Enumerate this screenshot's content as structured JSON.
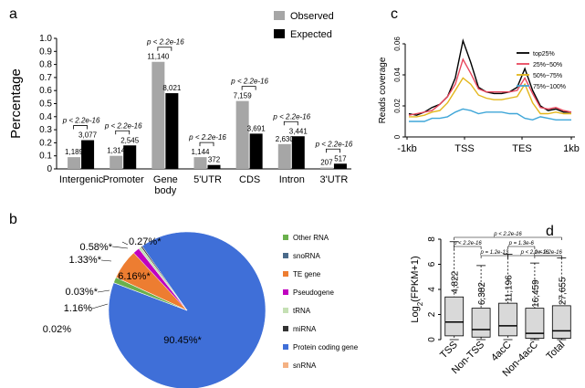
{
  "panels": {
    "a": "a",
    "b": "b",
    "c": "c",
    "d": "d"
  },
  "chart_data": [
    {
      "type": "bar",
      "panel": "a",
      "ylabel": "Percentage",
      "ylim": [
        0,
        1.0
      ],
      "yticks": [
        "0",
        "0.1",
        "0.2",
        "0.3",
        "0.4",
        "0.5",
        "0.6",
        "0.7",
        "0.8",
        "0.9",
        "1.0"
      ],
      "categories": [
        "Intergenic",
        "Promoter",
        "Gene body",
        "5'UTR",
        "CDS",
        "Intron",
        "3'UTR"
      ],
      "category_lines": [
        [
          "Intergenic"
        ],
        [
          "Promoter"
        ],
        [
          "Gene",
          "body"
        ],
        [
          "5'UTR"
        ],
        [
          "CDS"
        ],
        [
          "Intron"
        ],
        [
          "3'UTR"
        ]
      ],
      "series": [
        {
          "name": "Observed",
          "color": "#a6a6a6",
          "values": [
            0.09,
            0.1,
            0.82,
            0.09,
            0.52,
            0.19,
            0.01
          ],
          "labels": [
            "1,189",
            "1,314",
            "11,140",
            "1,144",
            "7,159",
            "2,630",
            "207"
          ]
        },
        {
          "name": "Expected",
          "color": "#000000",
          "values": [
            0.22,
            0.18,
            0.58,
            0.03,
            0.27,
            0.25,
            0.04
          ],
          "labels": [
            "3,077",
            "2,545",
            "8,021",
            "372",
            "3,691",
            "3,441",
            "517"
          ]
        }
      ],
      "pvalue": "p < 2.2e-16",
      "legend": [
        "Observed",
        "Expected"
      ]
    },
    {
      "type": "line",
      "panel": "c",
      "ylabel": "Reads coverage",
      "ylim": [
        0,
        0.06
      ],
      "yticks": [
        "0",
        "0.02",
        "0.04",
        "0.06"
      ],
      "xticks": [
        "-1kb",
        "TSS",
        "TES",
        "1kb"
      ],
      "series": [
        {
          "name": "top25%",
          "color": "#000000",
          "values": [
            0.015,
            0.014,
            0.016,
            0.019,
            0.021,
            0.026,
            0.038,
            0.062,
            0.048,
            0.032,
            0.029,
            0.028,
            0.028,
            0.029,
            0.032,
            0.044,
            0.03,
            0.02,
            0.017,
            0.018,
            0.016,
            0.016
          ]
        },
        {
          "name": "25%~50%",
          "color": "#e8475d",
          "values": [
            0.014,
            0.015,
            0.016,
            0.017,
            0.021,
            0.026,
            0.034,
            0.05,
            0.041,
            0.031,
            0.029,
            0.029,
            0.029,
            0.029,
            0.03,
            0.038,
            0.028,
            0.019,
            0.018,
            0.019,
            0.017,
            0.016
          ]
        },
        {
          "name": "50%~75%",
          "color": "#e3b61b",
          "values": [
            0.013,
            0.013,
            0.014,
            0.016,
            0.017,
            0.022,
            0.03,
            0.038,
            0.034,
            0.027,
            0.025,
            0.024,
            0.024,
            0.025,
            0.026,
            0.034,
            0.022,
            0.015,
            0.015,
            0.016,
            0.015,
            0.015
          ]
        },
        {
          "name": "75%~100%",
          "color": "#3fa6d8",
          "values": [
            0.01,
            0.01,
            0.01,
            0.012,
            0.012,
            0.013,
            0.016,
            0.018,
            0.017,
            0.015,
            0.016,
            0.016,
            0.016,
            0.015,
            0.015,
            0.012,
            0.011,
            0.013,
            0.012,
            0.011,
            0.011,
            0.011
          ]
        }
      ]
    },
    {
      "type": "pie",
      "panel": "b",
      "slices": [
        {
          "name": "Other RNA",
          "value": 1.16,
          "color": "#6ab04c"
        },
        {
          "name": "snoRNA",
          "value": 0.02,
          "color": "#4a6a8a"
        },
        {
          "name": "TE gene",
          "value": 6.16,
          "color": "#ed7d31"
        },
        {
          "name": "Pseudogene",
          "value": 1.33,
          "color": "#c000c0"
        },
        {
          "name": "tRNA",
          "value": 0.58,
          "color": "#c5e0b4"
        },
        {
          "name": "miRNA",
          "value": 0.27,
          "color": "#333333"
        },
        {
          "name": "Protein coding gene",
          "value": 90.45,
          "color": "#3f6fd8"
        },
        {
          "name": "snRNA",
          "value": 0.03,
          "color": "#f4b183"
        }
      ],
      "slice_labels": {
        "protein": "90.45%*",
        "te": "6.16%*",
        "l027": "0.27%*",
        "l058": "0.58%*",
        "l133": "1.33%*",
        "l003": "0.03%*",
        "l116": "1.16%",
        "l002": "0.02%"
      }
    },
    {
      "type": "box",
      "panel": "d",
      "ylabel_base": "Log",
      "ylabel_sub": "2",
      "ylabel_rest": "(FPKM+1)",
      "ylim": [
        0,
        8
      ],
      "yticks": [
        "0",
        "2",
        "4",
        "6",
        "8"
      ],
      "categories": [
        "TSS",
        "Non-TSS",
        "4acC",
        "Non-4acC",
        "Total"
      ],
      "boxes": [
        {
          "whisker_low": 0.0,
          "q1": 0.3,
          "median": 1.4,
          "q3": 3.4,
          "whisker_high": 7.8,
          "n": "4,822"
        },
        {
          "whisker_low": 0.0,
          "q1": 0.2,
          "median": 0.8,
          "q3": 2.5,
          "whisker_high": 5.9,
          "n": "6,382"
        },
        {
          "whisker_low": 0.0,
          "q1": 0.3,
          "median": 1.1,
          "q3": 2.9,
          "whisker_high": 6.8,
          "n": "11,196"
        },
        {
          "whisker_low": 0.0,
          "q1": 0.1,
          "median": 0.5,
          "q3": 2.5,
          "whisker_high": 6.1,
          "n": "16,459"
        },
        {
          "whisker_low": 0.0,
          "q1": 0.1,
          "median": 0.7,
          "q3": 2.7,
          "whisker_high": 6.5,
          "n": "27,655"
        }
      ],
      "comparisons": [
        {
          "pair": [
            0,
            4
          ],
          "label": "p < 2.2e-16"
        },
        {
          "pair": [
            0,
            1
          ],
          "label": "p < 2.2e-16"
        },
        {
          "pair": [
            2,
            3
          ],
          "label": "p = 1.3e-6"
        },
        {
          "pair": [
            1,
            2
          ],
          "label": "p = 1.2e-13"
        },
        {
          "pair": [
            2,
            4
          ],
          "label": "p < 2.2e-16"
        },
        {
          "pair": [
            3,
            4
          ],
          "label": "p < 2.2e-16"
        }
      ]
    }
  ]
}
